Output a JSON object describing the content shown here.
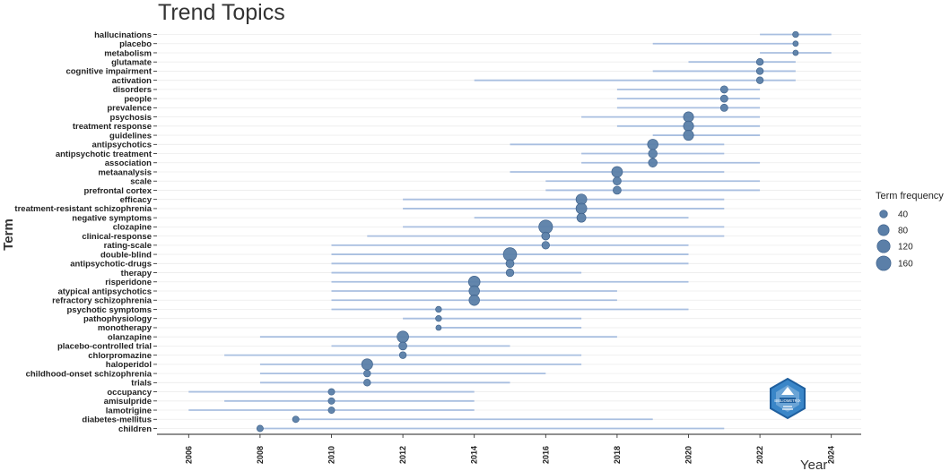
{
  "chart_data": {
    "type": "scatter",
    "title": "Trend Topics",
    "xlabel": "Year",
    "ylabel": "Term",
    "xlim": [
      2005,
      2025
    ],
    "x_ticks": [
      2006,
      2008,
      2010,
      2012,
      2014,
      2016,
      2018,
      2020,
      2022,
      2024
    ],
    "grid": true,
    "legend": {
      "title": "Term frequency",
      "position": "right",
      "sizes": [
        40,
        80,
        120,
        160
      ]
    },
    "colors": {
      "point": "#5b7fa8",
      "range_line": "#a9bfe0",
      "grid": "#ececec"
    },
    "terms": [
      {
        "term": "hallucinations",
        "start": 2022,
        "median": 2023,
        "end": 2024,
        "freq": 20
      },
      {
        "term": "placebo",
        "start": 2019,
        "median": 2023,
        "end": 2023,
        "freq": 15
      },
      {
        "term": "metabolism",
        "start": 2022,
        "median": 2023,
        "end": 2024,
        "freq": 15
      },
      {
        "term": "glutamate",
        "start": 2020,
        "median": 2022,
        "end": 2023,
        "freq": 30
      },
      {
        "term": "cognitive impairment",
        "start": 2019,
        "median": 2022,
        "end": 2023,
        "freq": 30
      },
      {
        "term": "activation",
        "start": 2014,
        "median": 2022,
        "end": 2023,
        "freq": 30
      },
      {
        "term": "disorders",
        "start": 2018,
        "median": 2021,
        "end": 2022,
        "freq": 35
      },
      {
        "term": "people",
        "start": 2018,
        "median": 2021,
        "end": 2022,
        "freq": 35
      },
      {
        "term": "prevalence",
        "start": 2018,
        "median": 2021,
        "end": 2022,
        "freq": 35
      },
      {
        "term": "psychosis",
        "start": 2017,
        "median": 2020,
        "end": 2022,
        "freq": 65
      },
      {
        "term": "treatment response",
        "start": 2018,
        "median": 2020,
        "end": 2022,
        "freq": 65
      },
      {
        "term": "guidelines",
        "start": 2019,
        "median": 2020,
        "end": 2022,
        "freq": 65
      },
      {
        "term": "antipsychotics",
        "start": 2015,
        "median": 2019,
        "end": 2021,
        "freq": 70
      },
      {
        "term": "antipsychotic treatment",
        "start": 2017,
        "median": 2019,
        "end": 2021,
        "freq": 55
      },
      {
        "term": "association",
        "start": 2017,
        "median": 2019,
        "end": 2022,
        "freq": 55
      },
      {
        "term": "metaanalysis",
        "start": 2015,
        "median": 2018,
        "end": 2021,
        "freq": 75
      },
      {
        "term": "scale",
        "start": 2016,
        "median": 2018,
        "end": 2022,
        "freq": 45
      },
      {
        "term": "prefrontal cortex",
        "start": 2016,
        "median": 2018,
        "end": 2022,
        "freq": 45
      },
      {
        "term": "efficacy",
        "start": 2012,
        "median": 2017,
        "end": 2021,
        "freq": 75
      },
      {
        "term": "treatment-resistant schizophrenia",
        "start": 2012,
        "median": 2017,
        "end": 2021,
        "freq": 75
      },
      {
        "term": "negative symptoms",
        "start": 2014,
        "median": 2017,
        "end": 2020,
        "freq": 60
      },
      {
        "term": "clozapine",
        "start": 2012,
        "median": 2016,
        "end": 2021,
        "freq": 140
      },
      {
        "term": "clinical-response",
        "start": 2011,
        "median": 2016,
        "end": 2021,
        "freq": 45
      },
      {
        "term": "rating-scale",
        "start": 2010,
        "median": 2016,
        "end": 2020,
        "freq": 40
      },
      {
        "term": "double-blind",
        "start": 2010,
        "median": 2015,
        "end": 2020,
        "freq": 130
      },
      {
        "term": "antipsychotic-drugs",
        "start": 2010,
        "median": 2015,
        "end": 2020,
        "freq": 45
      },
      {
        "term": "therapy",
        "start": 2010,
        "median": 2015,
        "end": 2017,
        "freq": 40
      },
      {
        "term": "risperidone",
        "start": 2010,
        "median": 2014,
        "end": 2020,
        "freq": 90
      },
      {
        "term": "atypical antipsychotics",
        "start": 2010,
        "median": 2014,
        "end": 2018,
        "freq": 70
      },
      {
        "term": "refractory schizophrenia",
        "start": 2010,
        "median": 2014,
        "end": 2018,
        "freq": 70
      },
      {
        "term": "psychotic symptoms",
        "start": 2010,
        "median": 2013,
        "end": 2020,
        "freq": 20
      },
      {
        "term": "pathophysiology",
        "start": 2012,
        "median": 2013,
        "end": 2017,
        "freq": 20
      },
      {
        "term": "monotherapy",
        "start": 2013,
        "median": 2013,
        "end": 2017,
        "freq": 15
      },
      {
        "term": "olanzapine",
        "start": 2008,
        "median": 2012,
        "end": 2018,
        "freq": 90
      },
      {
        "term": "placebo-controlled trial",
        "start": 2010,
        "median": 2012,
        "end": 2015,
        "freq": 45
      },
      {
        "term": "chlorpromazine",
        "start": 2007,
        "median": 2012,
        "end": 2017,
        "freq": 30
      },
      {
        "term": "haloperidol",
        "start": 2008,
        "median": 2011,
        "end": 2017,
        "freq": 80
      },
      {
        "term": "childhood-onset schizophrenia",
        "start": 2008,
        "median": 2011,
        "end": 2016,
        "freq": 30
      },
      {
        "term": "trials",
        "start": 2008,
        "median": 2011,
        "end": 2015,
        "freq": 30
      },
      {
        "term": "occupancy",
        "start": 2006,
        "median": 2010,
        "end": 2014,
        "freq": 25
      },
      {
        "term": "amisulpride",
        "start": 2007,
        "median": 2010,
        "end": 2014,
        "freq": 25
      },
      {
        "term": "lamotrigine",
        "start": 2006,
        "median": 2010,
        "end": 2014,
        "freq": 25
      },
      {
        "term": "diabetes-mellitus",
        "start": 2009,
        "median": 2009,
        "end": 2019,
        "freq": 25
      },
      {
        "term": "children",
        "start": 2008,
        "median": 2008,
        "end": 2021,
        "freq": 25
      }
    ]
  },
  "logo": {
    "text": "BIBLIOMETRIX"
  }
}
